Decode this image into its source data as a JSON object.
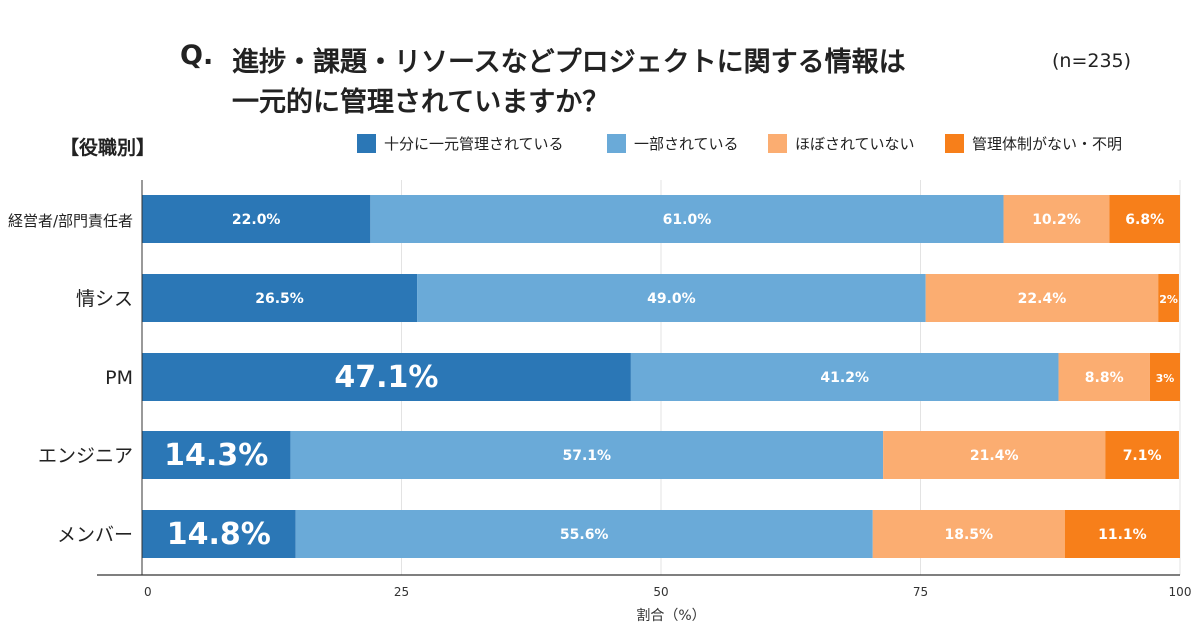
{
  "header": {
    "q_prefix": "Q.",
    "title_line1": "進捗・課題・リソースなどプロジェクトに関する情報は",
    "title_line2": "一元的に管理されていますか？",
    "sample_size": "(n=235)",
    "group_label": "【役職別】"
  },
  "legend": {
    "items": [
      {
        "label": "十分に一元管理されている",
        "color": "#2b77b6"
      },
      {
        "label": "一部されている",
        "color": "#6aaad8"
      },
      {
        "label": "ほぼされていない",
        "color": "#fbad71"
      },
      {
        "label": "管理体制がない・不明",
        "color": "#f77f1a"
      }
    ]
  },
  "chart_data": {
    "type": "bar",
    "orientation": "horizontal-stacked",
    "title": "進捗・課題・リソースなどプロジェクトに関する情報は一元的に管理されていますか？",
    "xlabel": "割合（%）",
    "xlim": [
      0,
      100
    ],
    "xticks": [
      0,
      25,
      50,
      75,
      100
    ],
    "categories": [
      "経営者/部門責任者",
      "情シス",
      "PM",
      "エンジニア",
      "メンバー"
    ],
    "series": [
      {
        "name": "十分に一元管理されている",
        "color": "#2b77b6",
        "values": [
          22.0,
          26.5,
          47.1,
          14.3,
          14.8
        ],
        "labels": [
          "22.0%",
          "26.5%",
          "47.1%",
          "14.3%",
          "14.8%"
        ],
        "emphasis": [
          false,
          false,
          true,
          true,
          true
        ]
      },
      {
        "name": "一部されている",
        "color": "#6aaad8",
        "values": [
          61.0,
          49.0,
          41.2,
          57.1,
          55.6
        ],
        "labels": [
          "61.0%",
          "49.0%",
          "41.2%",
          "57.1%",
          "55.6%"
        ]
      },
      {
        "name": "ほぼされていない",
        "color": "#fbad71",
        "values": [
          10.2,
          22.4,
          8.8,
          21.4,
          18.5
        ],
        "labels": [
          "10.2%",
          "22.4%",
          "8.8%",
          "21.4%",
          "18.5%"
        ]
      },
      {
        "name": "管理体制がない・不明",
        "color": "#f77f1a",
        "values": [
          6.8,
          2.0,
          2.9,
          7.1,
          11.1
        ],
        "labels": [
          "6.8%",
          "2%",
          "3%",
          "7.1%",
          "11.1%"
        ]
      }
    ]
  }
}
